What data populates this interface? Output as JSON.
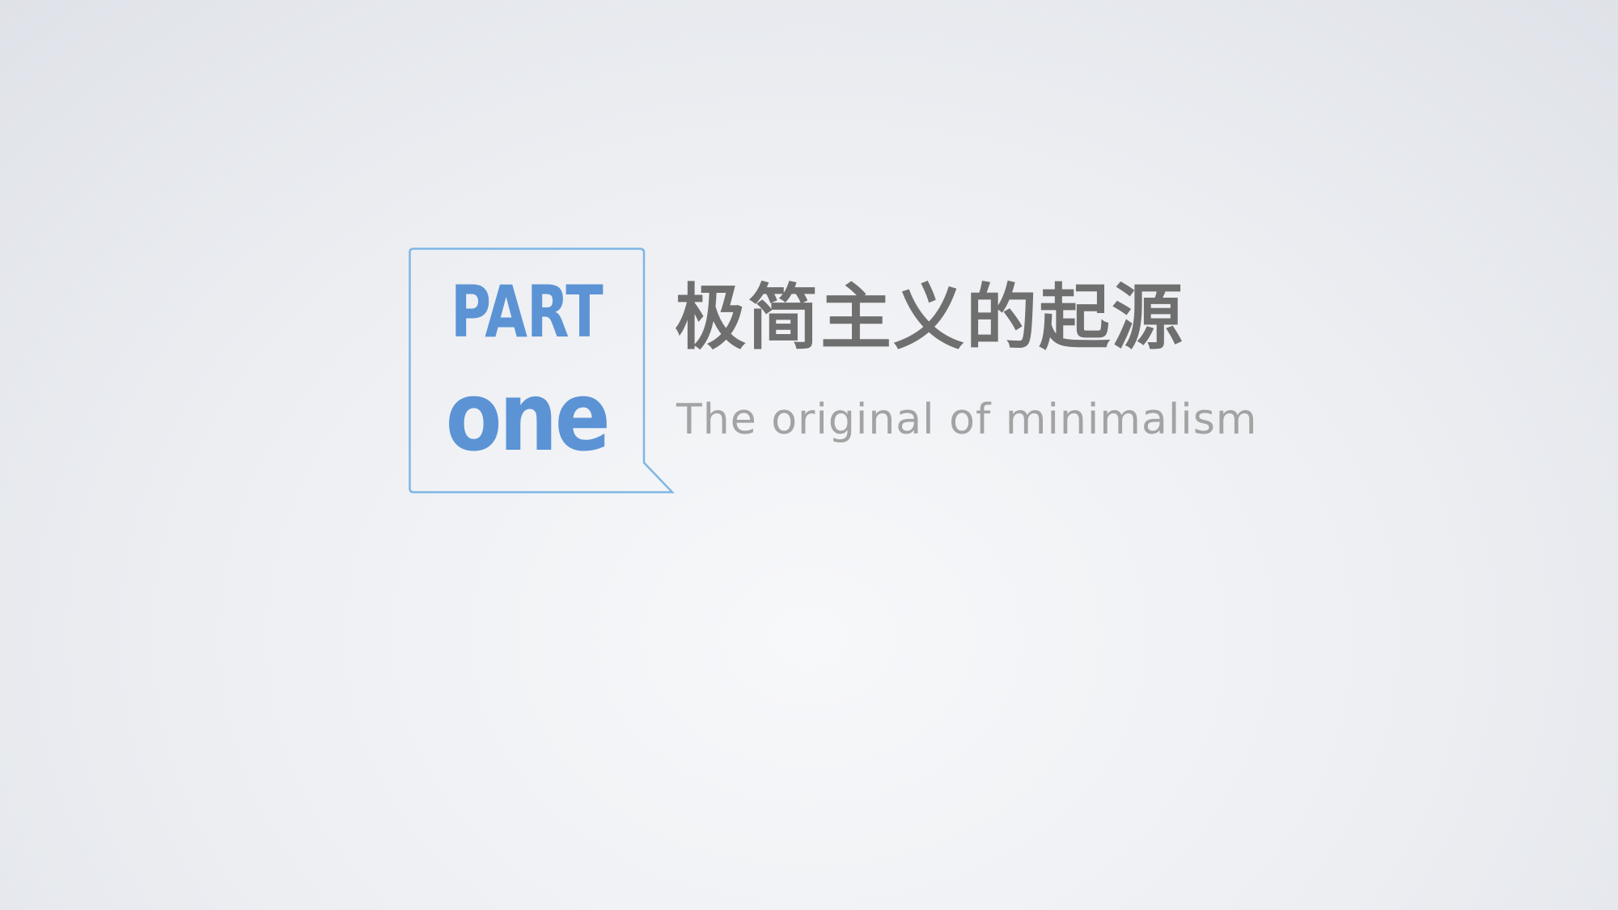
{
  "slide": {
    "part_label": "PART",
    "part_number": "one",
    "title": "极简主义的起源",
    "subtitle": "The original of minimalism"
  },
  "colors": {
    "accent": "#5b93d5",
    "bubble_border": "#7fb6e4",
    "title": "#6f6f6f",
    "subtitle": "#a3a3a3"
  },
  "icons": {
    "bubble": "speech-bubble-outline-icon"
  }
}
